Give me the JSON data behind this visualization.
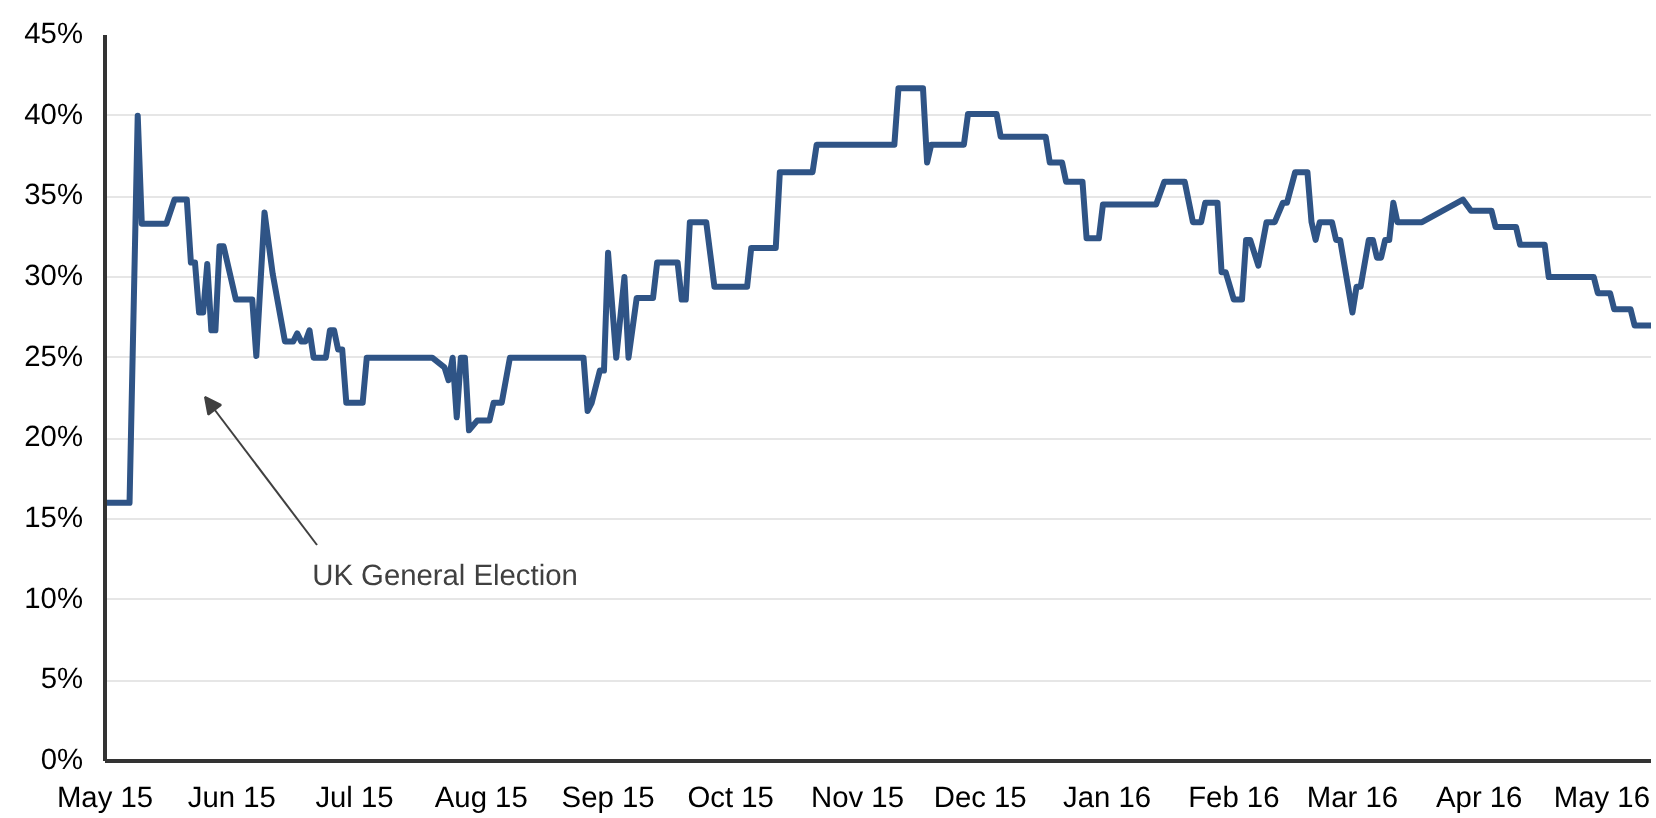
{
  "chart_data": {
    "type": "line",
    "x": [
      "2015-05-01",
      "2015-05-07",
      "2015-05-09",
      "2015-05-10",
      "2015-05-16",
      "2015-05-18",
      "2015-05-21",
      "2015-05-22",
      "2015-05-23",
      "2015-05-24",
      "2015-05-25",
      "2015-05-26",
      "2015-05-27",
      "2015-05-28",
      "2015-05-29",
      "2015-05-30",
      "2015-06-02",
      "2015-06-06",
      "2015-06-07",
      "2015-06-09",
      "2015-06-11",
      "2015-06-14",
      "2015-06-16",
      "2015-06-17",
      "2015-06-18",
      "2015-06-19",
      "2015-06-20",
      "2015-06-21",
      "2015-06-24",
      "2015-06-25",
      "2015-06-26",
      "2015-06-27",
      "2015-06-28",
      "2015-06-29",
      "2015-07-03",
      "2015-07-04",
      "2015-07-20",
      "2015-07-23",
      "2015-07-24",
      "2015-07-25",
      "2015-07-26",
      "2015-07-27",
      "2015-07-28",
      "2015-07-29",
      "2015-07-31",
      "2015-08-03",
      "2015-08-04",
      "2015-08-06",
      "2015-08-08",
      "2015-08-26",
      "2015-08-27",
      "2015-08-28",
      "2015-08-30",
      "2015-08-31",
      "2015-09-01",
      "2015-09-03",
      "2015-09-05",
      "2015-09-06",
      "2015-09-08",
      "2015-09-12",
      "2015-09-13",
      "2015-09-18",
      "2015-09-19",
      "2015-09-20",
      "2015-09-21",
      "2015-09-25",
      "2015-09-27",
      "2015-10-05",
      "2015-10-06",
      "2015-10-12",
      "2015-10-13",
      "2015-10-21",
      "2015-10-22",
      "2015-11-10",
      "2015-11-11",
      "2015-11-17",
      "2015-11-18",
      "2015-11-19",
      "2015-11-27",
      "2015-11-28",
      "2015-12-05",
      "2015-12-06",
      "2015-12-17",
      "2015-12-18",
      "2015-12-21",
      "2015-12-22",
      "2015-12-26",
      "2015-12-27",
      "2015-12-30",
      "2015-12-31",
      "2016-01-13",
      "2016-01-15",
      "2016-01-20",
      "2016-01-22",
      "2016-01-24",
      "2016-01-25",
      "2016-01-28",
      "2016-01-29",
      "2016-01-30",
      "2016-02-01",
      "2016-02-03",
      "2016-02-04",
      "2016-02-05",
      "2016-02-07",
      "2016-02-09",
      "2016-02-11",
      "2016-02-13",
      "2016-02-14",
      "2016-02-16",
      "2016-02-19",
      "2016-02-20",
      "2016-02-21",
      "2016-02-22",
      "2016-02-25",
      "2016-02-26",
      "2016-02-27",
      "2016-03-01",
      "2016-03-02",
      "2016-03-03",
      "2016-03-05",
      "2016-03-06",
      "2016-03-07",
      "2016-03-08",
      "2016-03-09",
      "2016-03-10",
      "2016-03-11",
      "2016-03-12",
      "2016-03-18",
      "2016-03-28",
      "2016-03-30",
      "2016-04-04",
      "2016-04-05",
      "2016-04-10",
      "2016-04-11",
      "2016-04-17",
      "2016-04-18",
      "2016-04-29",
      "2016-04-30",
      "2016-05-03",
      "2016-05-04",
      "2016-05-08",
      "2016-05-09",
      "2016-05-13"
    ],
    "series": [
      {
        "color": "#2f5486",
        "values": [
          16,
          16,
          40,
          33.3,
          33.3,
          34.8,
          34.8,
          30.9,
          30.9,
          27.8,
          27.8,
          30.8,
          26.7,
          26.7,
          31.9,
          31.9,
          28.6,
          28.6,
          25.1,
          34,
          30.2,
          26,
          26,
          26.5,
          26,
          26,
          26.7,
          25,
          25,
          26.7,
          26.7,
          25.5,
          25.5,
          22.2,
          22.2,
          25,
          25,
          24.4,
          23.6,
          25,
          21.3,
          25,
          25,
          20.5,
          21.1,
          21.1,
          22.2,
          22.2,
          25,
          25,
          21.7,
          22.2,
          24.2,
          24.2,
          31.5,
          25,
          30,
          25,
          28.7,
          28.7,
          30.9,
          30.9,
          28.6,
          28.6,
          33.4,
          33.4,
          29.4,
          29.4,
          31.8,
          31.8,
          36.5,
          36.5,
          38.2,
          38.2,
          41.7,
          41.7,
          37.1,
          38.2,
          38.2,
          40.1,
          40.1,
          38.7,
          38.7,
          37.1,
          37.1,
          35.9,
          35.9,
          32.4,
          32.4,
          34.5,
          34.5,
          35.9,
          35.9,
          33.4,
          33.4,
          34.6,
          34.6,
          30.3,
          30.3,
          28.6,
          28.6,
          32.3,
          32.3,
          30.7,
          33.4,
          33.4,
          34.6,
          34.6,
          36.5,
          36.5,
          33.4,
          32.3,
          33.4,
          33.4,
          32.3,
          32.3,
          27.8,
          29.4,
          29.4,
          32.3,
          32.3,
          31.2,
          31.2,
          32.3,
          32.3,
          34.6,
          33.4,
          33.4,
          34.8,
          34.1,
          34.1,
          33.1,
          33.1,
          32,
          32,
          30,
          30,
          29,
          29,
          28,
          28,
          27,
          27
        ]
      }
    ],
    "xlim": [
      "2015-05-01",
      "2016-05-13"
    ],
    "xticks": [
      {
        "value": "2015-05-01",
        "label": "May 15"
      },
      {
        "value": "2015-06-01",
        "label": "Jun 15"
      },
      {
        "value": "2015-07-01",
        "label": "Jul 15"
      },
      {
        "value": "2015-08-01",
        "label": "Aug 15"
      },
      {
        "value": "2015-09-01",
        "label": "Sep 15"
      },
      {
        "value": "2015-10-01",
        "label": "Oct 15"
      },
      {
        "value": "2015-11-01",
        "label": "Nov 15"
      },
      {
        "value": "2015-12-01",
        "label": "Dec 15"
      },
      {
        "value": "2016-01-01",
        "label": "Jan 16"
      },
      {
        "value": "2016-02-01",
        "label": "Feb 16"
      },
      {
        "value": "2016-03-01",
        "label": "Mar 16"
      },
      {
        "value": "2016-04-01",
        "label": "Apr 16"
      },
      {
        "value": "2016-05-01",
        "label": "May 16"
      }
    ],
    "ylim": [
      0,
      45
    ],
    "yticks": [
      {
        "value": 0,
        "label": "0%"
      },
      {
        "value": 5,
        "label": "5%"
      },
      {
        "value": 10,
        "label": "10%"
      },
      {
        "value": 15,
        "label": "15%"
      },
      {
        "value": 20,
        "label": "20%"
      },
      {
        "value": 25,
        "label": "25%"
      },
      {
        "value": 30,
        "label": "30%"
      },
      {
        "value": 35,
        "label": "35%"
      },
      {
        "value": 40,
        "label": "40%"
      },
      {
        "value": 45,
        "label": "45%"
      }
    ],
    "grid": "y",
    "annotations": [
      "UK General Election"
    ]
  }
}
